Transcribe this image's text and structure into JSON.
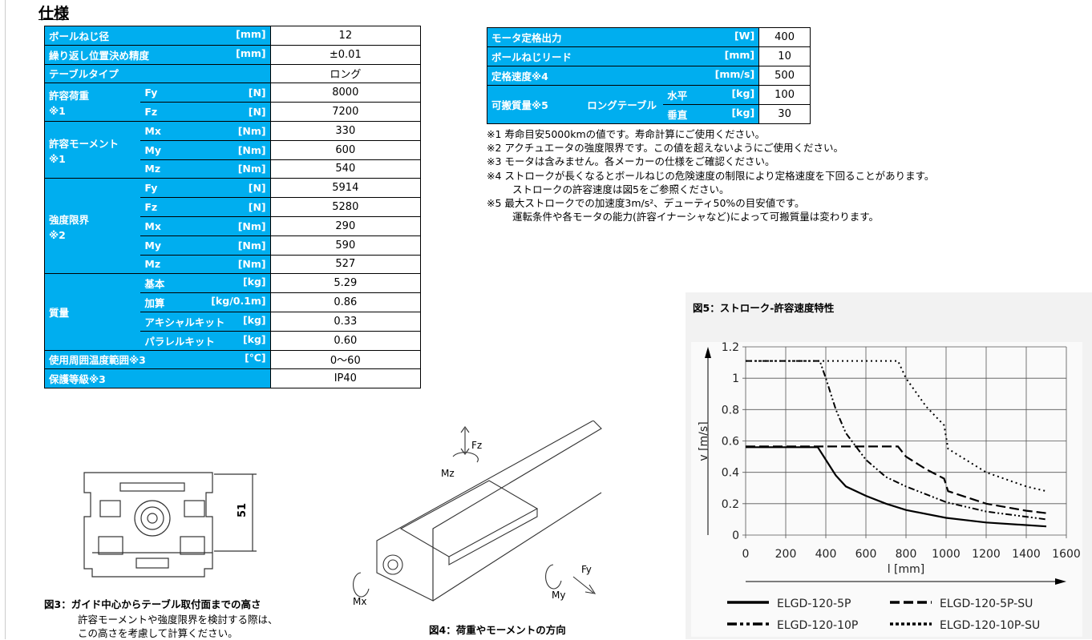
{
  "title": "仕様",
  "spec": {
    "r1": {
      "label": "ボールねじ径",
      "unit": "[mm]",
      "value": "12"
    },
    "r2": {
      "label": "繰り返し位置決め精度",
      "unit": "[mm]",
      "value": "±0.01"
    },
    "r3": {
      "label": "テーブルタイプ",
      "value": "ロング"
    },
    "load": {
      "label1": "許容荷重",
      "label2": "※1",
      "rows": [
        {
          "sub": "Fy",
          "unit": "[N]",
          "value": "8000"
        },
        {
          "sub": "Fz",
          "unit": "[N]",
          "value": "7200"
        }
      ]
    },
    "moment": {
      "label1": "許容モーメント",
      "label2": "※1",
      "rows": [
        {
          "sub": "Mx",
          "unit": "[Nm]",
          "value": "330"
        },
        {
          "sub": "My",
          "unit": "[Nm]",
          "value": "600"
        },
        {
          "sub": "Mz",
          "unit": "[Nm]",
          "value": "540"
        }
      ]
    },
    "limit": {
      "label1": "強度限界",
      "label2": "※2",
      "rows": [
        {
          "sub": "Fy",
          "unit": "[N]",
          "value": "5914"
        },
        {
          "sub": "Fz",
          "unit": "[N]",
          "value": "5280"
        },
        {
          "sub": "Mx",
          "unit": "[Nm]",
          "value": "290"
        },
        {
          "sub": "My",
          "unit": "[Nm]",
          "value": "590"
        },
        {
          "sub": "Mz",
          "unit": "[Nm]",
          "value": "527"
        }
      ]
    },
    "mass": {
      "label": "質量",
      "rows": [
        {
          "sub": "基本",
          "unit": "[kg]",
          "value": "5.29"
        },
        {
          "sub": "加算",
          "unit": "[kg/0.1m]",
          "value": "0.86"
        },
        {
          "sub": "アキシャルキット",
          "unit": "[kg]",
          "value": "0.33"
        },
        {
          "sub": "パラレルキット",
          "unit": "[kg]",
          "value": "0.60"
        }
      ]
    },
    "r18": {
      "label": "使用周囲温度範囲※3",
      "unit": "[℃]",
      "value": "0～60"
    },
    "r19": {
      "label": "保護等級※3",
      "value": "IP40"
    }
  },
  "motor": {
    "r1": {
      "label": "モータ定格出力",
      "unit": "[W]",
      "value": "400"
    },
    "r2": {
      "label": "ボールねじリード",
      "unit": "[mm]",
      "value": "10"
    },
    "r3": {
      "label": "定格速度※4",
      "unit": "[mm/s]",
      "value": "500"
    },
    "r4": {
      "label": "可搬質量※5",
      "type": "ロングテーブル",
      "h": "水平",
      "hunit": "[kg]",
      "hvalue": "100",
      "v": "垂直",
      "vunit": "[kg]",
      "vvalue": "30"
    }
  },
  "notes": [
    "※1 寿命目安5000kmの値です。寿命計算にご使用ください。",
    "※2 アクチュエータの強度限界です。この値を超えないようにご使用ください。",
    "※3 モータは含みません。各メーカーの仕様をご確認ください。",
    "※4 ストロークが長くなるとボールねじの危険速度の制限により定格速度を下回ることがあります。",
    "ストロークの許容速度は図5をご参照ください。",
    "※5 最大ストロークでの加速度3m/s²、デューティ50%の目安値です。",
    "運転条件や各モータの能力(許容イナーシャなど)によって可搬質量は変わります。"
  ],
  "fig3": {
    "caption": "図3：ガイド中心からテーブル取付面までの高さ",
    "text1": "許容モーメントや強度限界を検討する際は、",
    "text2": "この高さを考慮して計算ください。",
    "dim": "51"
  },
  "fig4": {
    "caption": "図4：荷重やモーメントの方向",
    "labels": [
      "Fz",
      "Mz",
      "Mx",
      "My",
      "Fy"
    ]
  },
  "fig5": {
    "caption": "図5：ストローク-許容速度特性"
  },
  "chart_data": {
    "type": "line",
    "xlabel": "l [mm]",
    "ylabel": "v [m/s]",
    "xlim": [
      0,
      1600
    ],
    "ylim": [
      0,
      1.2
    ],
    "xticks": [
      0,
      200,
      400,
      600,
      800,
      1000,
      1200,
      1400,
      1600
    ],
    "yticks": [
      "0",
      "0.2",
      "0.4",
      "0.6",
      "0.8",
      "1",
      "1.2"
    ],
    "grid": true,
    "legend": "bottom",
    "series": [
      {
        "name": "ELGD-120-5P",
        "style": "solid",
        "x": [
          0,
          360,
          400,
          450,
          500,
          600,
          700,
          800,
          1000,
          1200,
          1500
        ],
        "y": [
          0.56,
          0.56,
          0.48,
          0.38,
          0.31,
          0.25,
          0.2,
          0.16,
          0.11,
          0.08,
          0.055
        ]
      },
      {
        "name": "ELGD-120-5P-SU",
        "style": "dash",
        "x": [
          0,
          760,
          800,
          900,
          990,
          1010,
          1200,
          1400,
          1500
        ],
        "y": [
          0.565,
          0.565,
          0.5,
          0.42,
          0.36,
          0.28,
          0.2,
          0.155,
          0.14
        ]
      },
      {
        "name": "ELGD-120-10P",
        "style": "dashdotdot",
        "x": [
          0,
          370,
          400,
          450,
          500,
          600,
          700,
          800,
          1000,
          1200,
          1500
        ],
        "y": [
          1.11,
          1.11,
          1.0,
          0.8,
          0.65,
          0.48,
          0.37,
          0.31,
          0.21,
          0.15,
          0.1
        ]
      },
      {
        "name": "ELGD-120-10P-SU",
        "style": "dot",
        "x": [
          0,
          760,
          800,
          900,
          990,
          1010,
          1200,
          1400,
          1500
        ],
        "y": [
          1.11,
          1.11,
          1.0,
          0.82,
          0.7,
          0.55,
          0.4,
          0.31,
          0.28
        ]
      }
    ]
  }
}
